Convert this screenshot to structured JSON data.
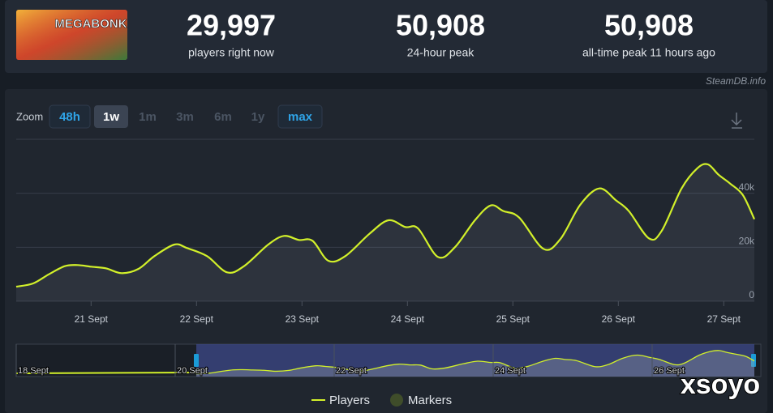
{
  "header": {
    "game": "MEGABONK",
    "stats": [
      {
        "value": "29,997",
        "label": "players right now"
      },
      {
        "value": "50,908",
        "label": "24-hour peak"
      },
      {
        "value": "50,908",
        "label": "all-time peak 11 hours ago"
      }
    ],
    "source": "SteamDB.info"
  },
  "zoom": {
    "label": "Zoom",
    "options": [
      "48h",
      "1w",
      "1m",
      "3m",
      "6m",
      "1y",
      "max"
    ]
  },
  "chart_data": {
    "type": "line",
    "x": [
      20.29,
      20.45,
      20.6,
      20.75,
      20.87,
      21,
      21.14,
      21.29,
      21.45,
      21.6,
      21.79,
      21.91,
      22.1,
      22.29,
      22.45,
      22.68,
      22.83,
      22.97,
      23.1,
      23.25,
      23.41,
      23.64,
      23.82,
      23.98,
      24.1,
      24.29,
      24.45,
      24.64,
      24.79,
      24.91,
      25.06,
      25.29,
      25.45,
      25.64,
      25.82,
      25.98,
      26.1,
      26.29,
      26.41,
      26.6,
      26.75,
      26.85,
      26.95,
      27.06,
      27.18,
      27.29
    ],
    "series": [
      {
        "name": "Players",
        "color": "#d2f02a",
        "values": [
          5400,
          6600,
          10000,
          13000,
          13400,
          12800,
          12200,
          10400,
          12000,
          16700,
          21000,
          19700,
          16700,
          10700,
          13000,
          21000,
          24200,
          22700,
          22400,
          15000,
          16700,
          25000,
          30000,
          27500,
          27000,
          16400,
          20000,
          30000,
          35500,
          33400,
          31000,
          19400,
          23000,
          35800,
          41800,
          37300,
          33400,
          23300,
          26000,
          41800,
          49300,
          50700,
          46900,
          43600,
          39400,
          30400
        ]
      }
    ],
    "markers_legend": "Markers",
    "xlim": [
      20.29,
      27.29
    ],
    "xticks": [
      {
        "value": 21,
        "label": "21 Sept"
      },
      {
        "value": 22,
        "label": "22 Sept"
      },
      {
        "value": 23,
        "label": "23 Sept"
      },
      {
        "value": 24,
        "label": "24 Sept"
      },
      {
        "value": 25,
        "label": "25 Sept"
      },
      {
        "value": 26,
        "label": "26 Sept"
      },
      {
        "value": 27,
        "label": "27 Sept"
      }
    ],
    "ylim": [
      0,
      60000
    ],
    "yticks": [
      0,
      {
        "value": 20000,
        "label": "20k"
      },
      {
        "value": 40000,
        "label": "40k"
      }
    ],
    "grid": true
  },
  "navigator": {
    "labels": [
      "18 Sept",
      "20 Sept",
      "22 Sept",
      "24 Sept",
      "26 Sept"
    ]
  },
  "watermark": "xsoyo"
}
